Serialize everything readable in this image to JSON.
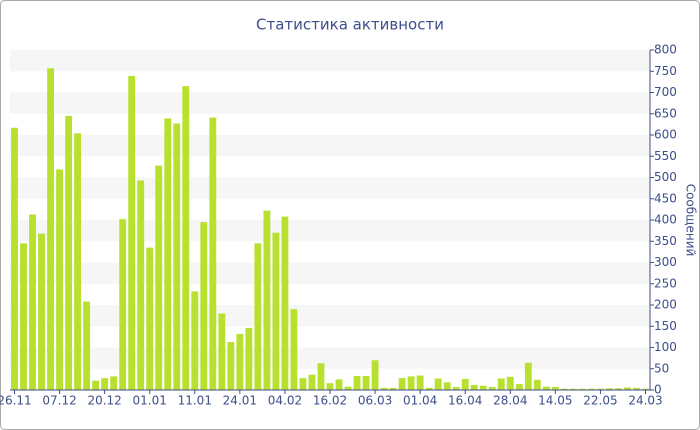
{
  "chart_data": {
    "type": "bar",
    "title": "Статистика активности",
    "y_label": "Сообщений",
    "categories": [
      "26.11",
      null,
      null,
      null,
      null,
      "07.12",
      null,
      null,
      null,
      null,
      "20.12",
      null,
      null,
      null,
      null,
      "01.01",
      null,
      null,
      null,
      null,
      "11.01",
      null,
      null,
      null,
      null,
      "24.01",
      null,
      null,
      null,
      null,
      "04.02",
      null,
      null,
      null,
      null,
      "16.02",
      null,
      null,
      null,
      null,
      "06.03",
      null,
      null,
      null,
      null,
      "01.04",
      null,
      null,
      null,
      null,
      "16.04",
      null,
      null,
      null,
      null,
      "28.04",
      null,
      null,
      null,
      null,
      "14.05",
      null,
      null,
      null,
      null,
      "22.05",
      null,
      null,
      null,
      null,
      "24.03"
    ],
    "values": [
      617,
      345,
      413,
      368,
      757,
      519,
      645,
      604,
      208,
      22,
      28,
      32,
      402,
      739,
      493,
      335,
      528,
      639,
      627,
      715,
      232,
      395,
      641,
      180,
      113,
      132,
      146,
      345,
      422,
      370,
      408,
      190,
      28,
      36,
      63,
      16,
      25,
      8,
      33,
      33,
      70,
      5,
      5,
      28,
      32,
      34,
      5,
      27,
      18,
      7,
      26,
      12,
      10,
      7,
      27,
      31,
      14,
      64,
      24,
      8,
      7,
      3,
      3,
      3,
      3,
      3,
      4,
      4,
      6,
      5,
      3
    ],
    "color": "#b8e02e",
    "ylim": [
      0,
      800
    ],
    "yticks": [
      0,
      50,
      100,
      150,
      200,
      250,
      300,
      350,
      400,
      450,
      500,
      550,
      600,
      650,
      700,
      750,
      800
    ],
    "grid": true
  }
}
